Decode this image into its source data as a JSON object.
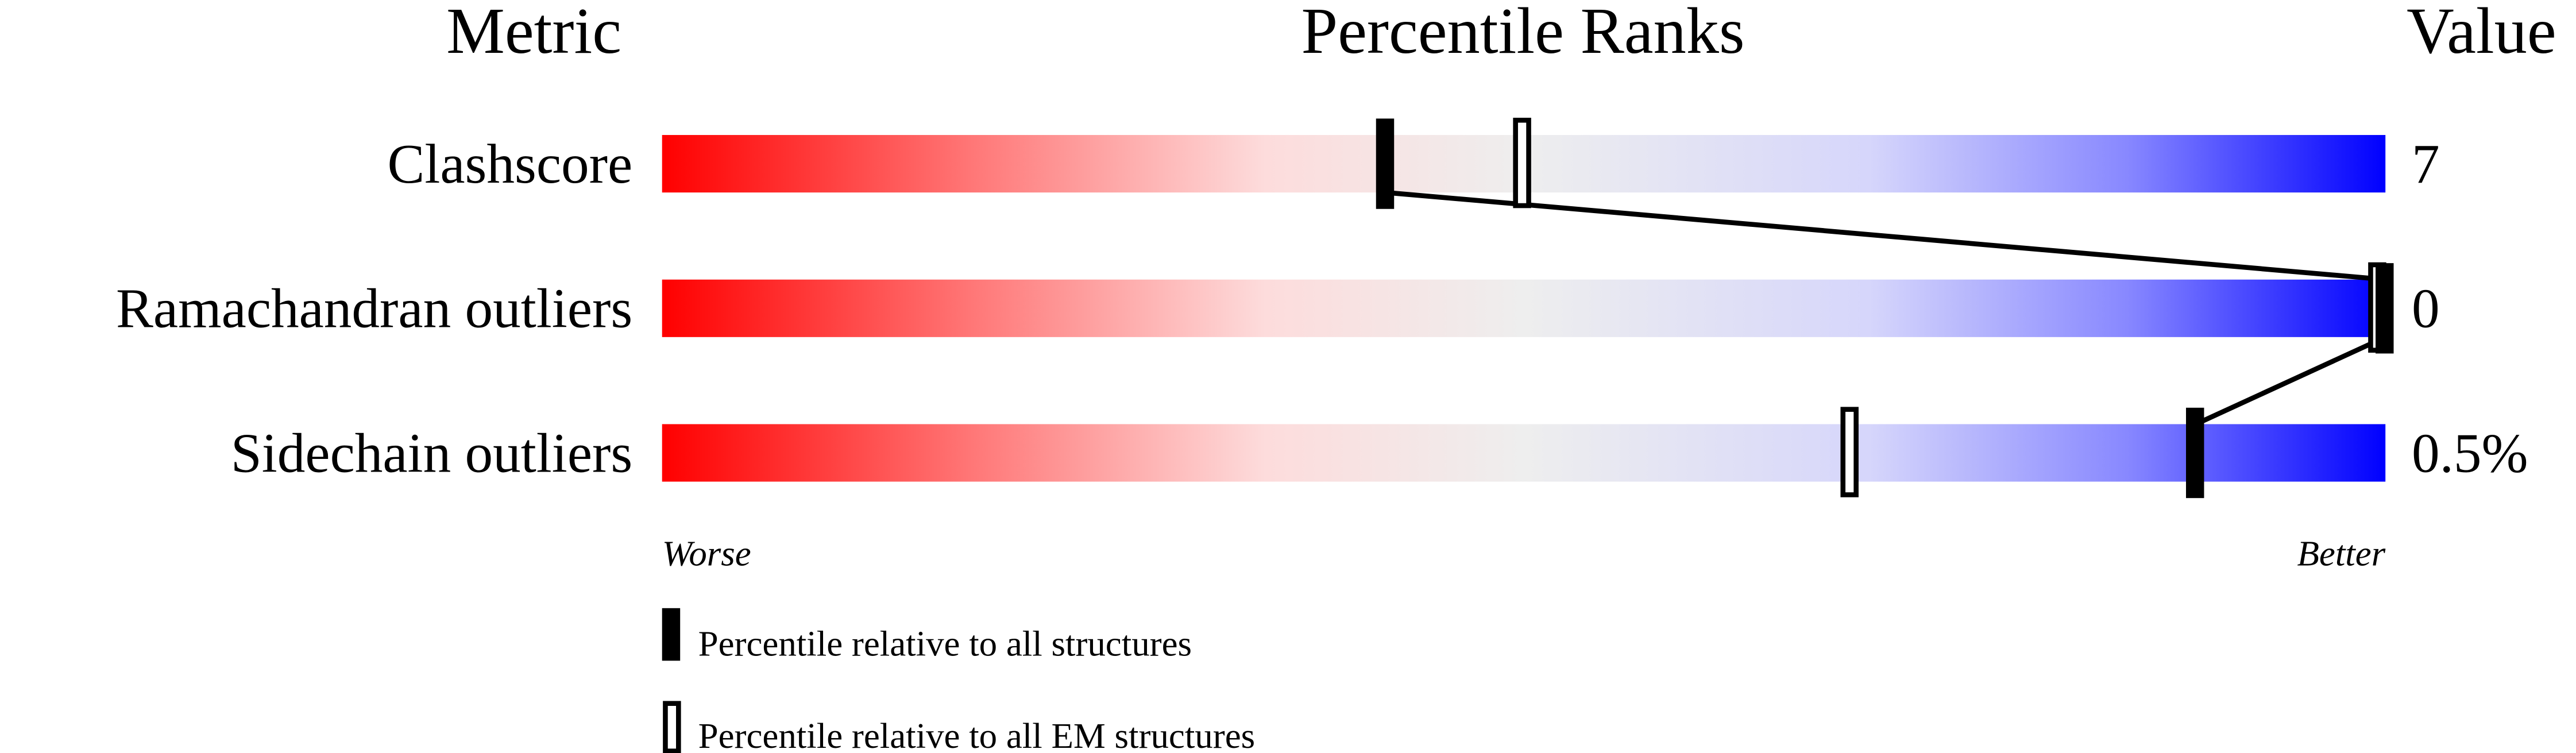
{
  "chart_data": {
    "type": "percentile-slider",
    "headers": {
      "metric": "Metric",
      "ranks": "Percentile Ranks",
      "value": "Value"
    },
    "xlim": [
      0,
      100
    ],
    "metrics": [
      {
        "name": "Clashscore",
        "value": "7",
        "percentile_all": 42,
        "percentile_em": 50
      },
      {
        "name": "Ramachandran outliers",
        "value": "0",
        "percentile_all": 100,
        "percentile_em": 100
      },
      {
        "name": "Sidechain outliers",
        "value": "0.5%",
        "percentile_all": 89,
        "percentile_em": 69
      }
    ],
    "axis": {
      "worse": "Worse",
      "better": "Better"
    },
    "gradient_colors": {
      "worse": "#ff0000",
      "middle": "#eeeeee",
      "better": "#0000ff"
    },
    "legend": {
      "all": "Percentile relative to all structures",
      "em": "Percentile relative to all EM structures"
    }
  }
}
